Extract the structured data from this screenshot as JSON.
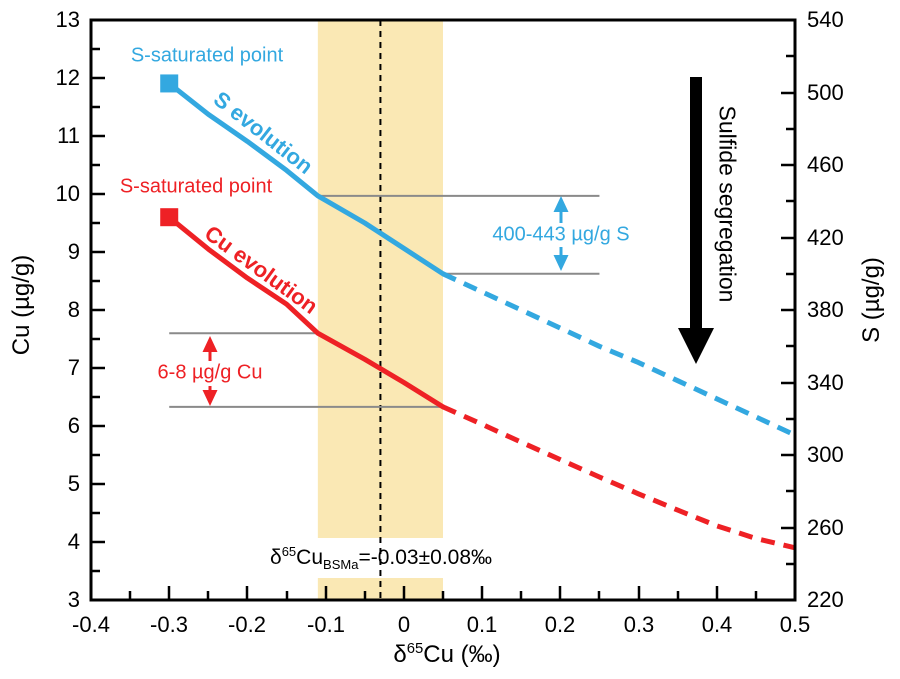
{
  "colors": {
    "blue": "#33A8E0",
    "red": "#EE2125",
    "band": "#FAE8B4",
    "gray": "#8A8A8A",
    "black": "#000000"
  },
  "labels": {
    "s_saturated_point_blue": "S-saturated point",
    "s_saturated_point_red": "S-saturated point",
    "s_evolution": "S evolution",
    "cu_evolution": "Cu evolution",
    "s_range": "400-443 µg/g S",
    "cu_range": "6-8 µg/g Cu",
    "sulfide_segregation": "Sulfide segregation",
    "bsma": {
      "delta": "δ",
      "isotope": "65",
      "element": "Cu",
      "subscript": "BSMa",
      "value": "=-0.03±0.08‰"
    }
  },
  "axes": {
    "x": {
      "title_delta": "δ",
      "title_isotope": "65",
      "title_rest": "Cu (‰)",
      "range": [
        -0.4,
        0.5
      ],
      "ticks": [
        "-0.4",
        "-0.3",
        "-0.2",
        "-0.1",
        "0",
        "0.1",
        "0.2",
        "0.3",
        "0.4",
        "0.5"
      ]
    },
    "y_left": {
      "title": "Cu (µg/g)",
      "range": [
        3,
        13
      ],
      "ticks": [
        "13",
        "12",
        "11",
        "10",
        "9",
        "8",
        "7",
        "6",
        "5",
        "4",
        "3"
      ]
    },
    "y_right": {
      "title": "S (µg/g)",
      "range": [
        220,
        540
      ],
      "ticks": [
        "540",
        "500",
        "460",
        "420",
        "380",
        "340",
        "300",
        "260",
        "220"
      ]
    }
  },
  "chart_data": {
    "type": "line",
    "xlabel": "δ65Cu (‰)",
    "ylabel_left": "Cu (µg/g)",
    "ylabel_right": "S (µg/g)",
    "xlim": [
      -0.4,
      0.5
    ],
    "ylim_left": [
      3,
      13
    ],
    "ylim_right": [
      220,
      540
    ],
    "x_major_tick": 0.1,
    "x_minor_tick": 0.05,
    "grid": false,
    "band": {
      "x_min": -0.11,
      "x_max": 0.05,
      "meaning": "δ65Cu BSMa uncertainty range"
    },
    "reference_line": {
      "x": -0.03,
      "style": "dashed",
      "label": "δ65CuBSMa=-0.03±0.08‰"
    },
    "series": [
      {
        "name": "S evolution",
        "axis": "right",
        "color": "#33A8E0",
        "saturation_point": {
          "x": -0.3,
          "y": 505,
          "label": "S-saturated point",
          "marker": "square"
        },
        "solid": {
          "x": [
            -0.3,
            -0.25,
            -0.2,
            -0.15,
            -0.11,
            -0.05,
            0,
            0.05
          ],
          "y": [
            505,
            488,
            473,
            457,
            443,
            428,
            414,
            400
          ]
        },
        "dashed": {
          "x": [
            0.05,
            0.1,
            0.15,
            0.2,
            0.25,
            0.3,
            0.35,
            0.4,
            0.45,
            0.5
          ],
          "y": [
            400,
            390,
            380,
            370,
            360,
            351,
            341,
            331,
            321,
            311
          ]
        }
      },
      {
        "name": "Cu evolution",
        "axis": "left",
        "color": "#EE2125",
        "saturation_point": {
          "x": -0.3,
          "y": 9.6,
          "label": "S-saturated point",
          "marker": "square"
        },
        "solid": {
          "x": [
            -0.3,
            -0.25,
            -0.2,
            -0.15,
            -0.11,
            -0.05,
            0,
            0.05
          ],
          "y": [
            9.6,
            9.05,
            8.55,
            8.1,
            7.6,
            7.15,
            6.75,
            6.33
          ]
        },
        "dashed": {
          "x": [
            0.05,
            0.1,
            0.15,
            0.2,
            0.25,
            0.3,
            0.35,
            0.4,
            0.45,
            0.5
          ],
          "y": [
            6.33,
            6.03,
            5.72,
            5.42,
            5.12,
            4.83,
            4.55,
            4.28,
            4.06,
            3.9
          ]
        }
      }
    ],
    "range_annotations": [
      {
        "label": "400-443 µg/g S",
        "axis": "right",
        "top_value": 443,
        "bottom_value": 400,
        "top_line_x": [
          -0.11,
          0.25
        ],
        "bottom_line_x": [
          0.05,
          0.25
        ],
        "arrow_x": 0.2
      },
      {
        "label": "6-8 µg/g Cu",
        "axis": "left",
        "top_value": 7.6,
        "bottom_value": 6.33,
        "top_line_x": [
          -0.3,
          -0.11
        ],
        "bottom_line_x": [
          -0.3,
          0.055
        ],
        "arrow_x": -0.248
      }
    ],
    "direction_annotation": {
      "label": "Sulfide segregation",
      "arrow": "down"
    }
  }
}
